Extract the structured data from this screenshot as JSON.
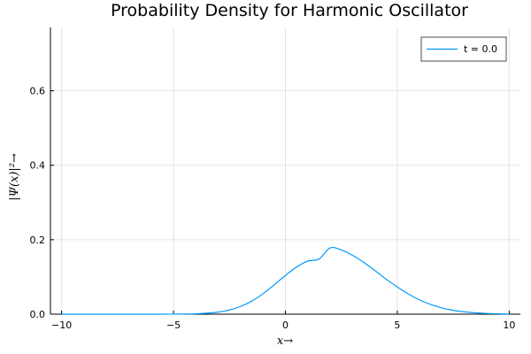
{
  "chart_data": {
    "type": "line",
    "title": "Probability Density for Harmonic Oscillator",
    "xlabel": "x→",
    "ylabel": "|Ψ(x)|²→",
    "xlim": [
      -10.5,
      10.5
    ],
    "ylim": [
      0,
      0.77
    ],
    "xticks": [
      -10,
      -5,
      0,
      5,
      10
    ],
    "xtick_labels": [
      "−10",
      "−5",
      "0",
      "5",
      "10"
    ],
    "yticks": [
      0.0,
      0.2,
      0.4,
      0.6
    ],
    "ytick_labels": [
      "0.0",
      "0.2",
      "0.4",
      "0.6"
    ],
    "grid": true,
    "legend_position": "top-right",
    "series": [
      {
        "name": "t = 0.0",
        "color": "#009af9",
        "x": [
          -10,
          -9,
          -8,
          -7,
          -6,
          -5,
          -4.5,
          -4,
          -3.5,
          -3,
          -2.5,
          -2,
          -1.5,
          -1,
          -0.5,
          0,
          0.5,
          1,
          1.5,
          2,
          2.5,
          3,
          3.5,
          4,
          4.5,
          5,
          5.5,
          6,
          6.5,
          7,
          7.5,
          8,
          8.5,
          9,
          9.5,
          10
        ],
        "y": [
          0.0,
          0.0,
          0.0,
          0.0,
          0.0,
          0.0001,
          0.0004,
          0.0011,
          0.0026,
          0.0057,
          0.0113,
          0.0208,
          0.0352,
          0.0548,
          0.0787,
          0.104,
          0.1267,
          0.1425,
          0.1481,
          0.178,
          0.1725,
          0.158,
          0.139,
          0.117,
          0.094,
          0.073,
          0.054,
          0.038,
          0.026,
          0.0168,
          0.0104,
          0.0062,
          0.0035,
          0.0019,
          0.001,
          0.0005
        ]
      }
    ]
  }
}
